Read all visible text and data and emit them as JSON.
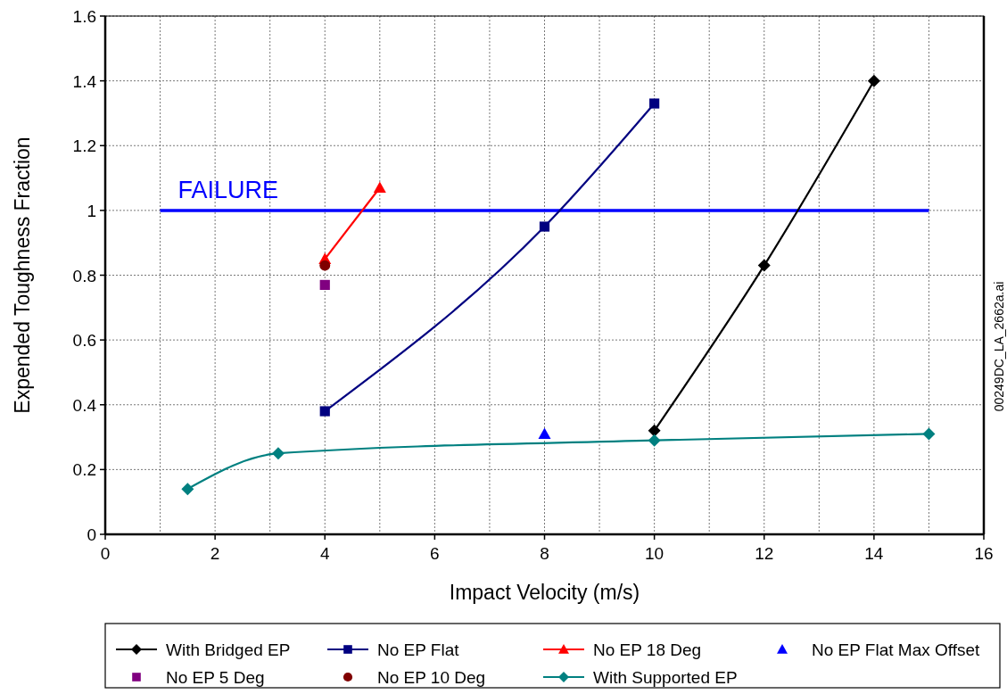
{
  "chart_data": {
    "type": "line",
    "xlabel": "Impact Velocity (m/s)",
    "ylabel": "Expended Toughness Fraction",
    "xlim": [
      0,
      16
    ],
    "xticks": [
      0,
      2,
      4,
      6,
      8,
      10,
      12,
      14,
      16
    ],
    "ylim": [
      0,
      1.6
    ],
    "yticks": [
      0,
      0.2,
      0.4,
      0.6,
      0.8,
      1,
      1.2,
      1.4,
      1.6
    ],
    "grid": true,
    "legend": "bottom",
    "series": [
      {
        "name": "With Bridged EP",
        "color": "#000000",
        "marker": "diamond",
        "x": [
          10,
          12,
          14
        ],
        "values": [
          0.32,
          0.83,
          1.4
        ]
      },
      {
        "name": "No EP Flat",
        "color": "#000080",
        "marker": "square",
        "x": [
          4,
          8,
          10
        ],
        "values": [
          0.38,
          0.95,
          1.33
        ]
      },
      {
        "name": "No EP 18 Deg",
        "color": "#ff0000",
        "marker": "triangle",
        "x": [
          4,
          5
        ],
        "values": [
          0.85,
          1.07
        ]
      },
      {
        "name": "No EP Flat Max Offset",
        "type": "scatter",
        "color": "#0000ff",
        "marker": "triangle",
        "x": [
          8
        ],
        "values": [
          0.31
        ]
      },
      {
        "name": "No EP 5 Deg",
        "type": "scatter",
        "color": "#800080",
        "marker": "square",
        "x": [
          4
        ],
        "values": [
          0.77
        ]
      },
      {
        "name": "No EP 10 Deg",
        "type": "scatter",
        "color": "#800000",
        "marker": "circle",
        "x": [
          4
        ],
        "values": [
          0.83
        ]
      },
      {
        "name": "With Supported EP",
        "color": "#008080",
        "marker": "diamond",
        "x": [
          1.5,
          3.15,
          10,
          15
        ],
        "values": [
          0.14,
          0.25,
          0.29,
          0.31
        ]
      }
    ],
    "ref_lines": [
      {
        "axis": "y",
        "value": 1,
        "label": "FAILURE",
        "color": "#0000ff"
      }
    ],
    "annotations": [
      "00249DC_LA_2662a.ai"
    ]
  }
}
